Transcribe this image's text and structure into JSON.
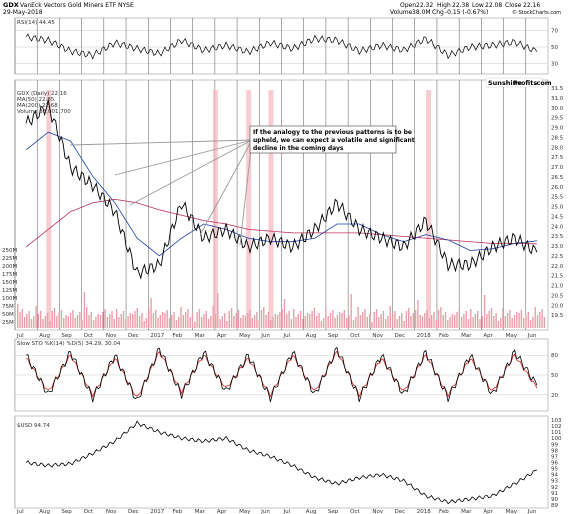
{
  "header": {
    "symbol": "GDX",
    "name": "VanEck Vectors Gold Miners ETF",
    "exchange": "NYSE",
    "date": "29-May-2018",
    "open_label": "Open",
    "open": "22.32",
    "high_label": "High",
    "high": "22.38",
    "low_label": "Low",
    "low": "22.08",
    "close_label": "Close",
    "close": "22.16",
    "volume_label": "Volume",
    "volume": "38.0M",
    "chg_label": "Chg",
    "chg": "-0.15 (-0.67%)",
    "copyright": "© StockCharts.com"
  },
  "rsi_label": "RSI(14) 44.45",
  "main_legend": {
    "line1": "GDX (Daily) 22.16",
    "line2": "MA(50) 22.85",
    "line3": "MA(200) 22.68",
    "volume": "Volume 38,001,700"
  },
  "logo": {
    "part1": "Sunshine",
    "part2": "Profits",
    "part3": ".com",
    "color1": "#d62828",
    "color2": "#d62828"
  },
  "annotation": {
    "line1": "If the analogy to the previous patterns is to be",
    "line2": "upheld, we can expect a volatile and significant",
    "line3": "decline in the coming days"
  },
  "stoch_label": "Slow STO %K(14) %D(5) 34.29, 30.04",
  "usd_label": "$USD 94.74",
  "months": [
    "Jul",
    "Aug",
    "Sep",
    "Oct",
    "Nov",
    "Dec",
    "2017",
    "Feb",
    "Mar",
    "Apr",
    "May",
    "Jun",
    "Jul",
    "Aug",
    "Sep",
    "Oct",
    "Nov",
    "Dec",
    "2018",
    "Feb",
    "Mar",
    "Apr",
    "May",
    "Jun"
  ],
  "price_ticks": [
    "31.5",
    "31.0",
    "30.0",
    "29.5",
    "29.0",
    "28.5",
    "28.0",
    "27.5",
    "27.0",
    "26.5",
    "26.0",
    "25.5",
    "25.0",
    "24.5",
    "24.0",
    "23.5",
    "23.0",
    "22.5",
    "22.0",
    "21.5",
    "21.0",
    "20.5",
    "20.0",
    "19.5"
  ],
  "volume_ticks": [
    "250M",
    "225M",
    "200M",
    "175M",
    "150M",
    "125M",
    "100M",
    "75M",
    "50M",
    "25M"
  ],
  "rsi_ticks": [
    "70",
    "50",
    "30"
  ],
  "stoch_ticks": [
    "80",
    "50",
    "20"
  ],
  "usd_ticks": [
    "103",
    "102",
    "101",
    "100",
    "99",
    "98",
    "97",
    "96",
    "95",
    "94",
    "93",
    "92",
    "91",
    "90",
    "89"
  ],
  "colors": {
    "price_line": "#000000",
    "ma50": "#1f3fa8",
    "ma200": "#c0305a",
    "volume": "#e8a0a8",
    "highlight": "#f5b7bd",
    "stoch_d": "#d62828"
  },
  "chart_data": [
    {
      "type": "line",
      "title": "GDX VanEck Vectors Gold Miners ETF NYSE",
      "x": [
        "Jul",
        "Aug",
        "Sep",
        "Oct",
        "Nov",
        "Dec",
        "2017",
        "Feb",
        "Mar",
        "Apr",
        "May",
        "Jun",
        "Jul",
        "Aug",
        "Sep",
        "Oct",
        "Nov",
        "Dec",
        "2018",
        "Feb",
        "Mar",
        "Apr",
        "May",
        "Jun"
      ],
      "series": [
        {
          "name": "GDX (Daily)",
          "values": [
            29.5,
            30.5,
            27.0,
            26.0,
            24.5,
            21.0,
            21.5,
            25.0,
            23.0,
            23.5,
            22.5,
            23.0,
            22.5,
            23.5,
            25.0,
            23.5,
            23.0,
            22.5,
            24.0,
            21.5,
            21.5,
            22.5,
            23.0,
            22.2
          ]
        },
        {
          "name": "MA(50)",
          "values": [
            28.0,
            29.0,
            28.5,
            26.5,
            25.0,
            23.0,
            22.0,
            23.0,
            23.8,
            23.5,
            23.0,
            22.8,
            22.8,
            23.0,
            23.8,
            23.8,
            23.2,
            22.8,
            23.2,
            22.9,
            22.3,
            22.4,
            22.7,
            22.85
          ]
        },
        {
          "name": "MA(200)",
          "values": [
            22.5,
            23.5,
            24.5,
            25.0,
            25.2,
            25.0,
            24.6,
            24.3,
            24.0,
            23.8,
            23.5,
            23.4,
            23.3,
            23.3,
            23.3,
            23.3,
            23.2,
            23.1,
            23.0,
            22.9,
            22.8,
            22.7,
            22.7,
            22.68
          ]
        }
      ],
      "ylim": [
        19.5,
        31.5
      ]
    },
    {
      "type": "line",
      "title": "RSI(14)",
      "ylim": [
        20,
        80
      ],
      "values": [
        62,
        58,
        45,
        40,
        55,
        48,
        42,
        58,
        46,
        52,
        44,
        55,
        48,
        60,
        58,
        45,
        52,
        46,
        60,
        40,
        50,
        52,
        56,
        44.45
      ]
    },
    {
      "type": "line",
      "title": "Slow STO %K(14) %D(5)",
      "ylim": [
        0,
        100
      ],
      "series": [
        {
          "name": "%K",
          "values": [
            80,
            20,
            85,
            15,
            80,
            10,
            90,
            20,
            85,
            25,
            80,
            15,
            85,
            20,
            90,
            15,
            80,
            20,
            85,
            15,
            80,
            20,
            85,
            34.29
          ]
        },
        {
          "name": "%D",
          "values": [
            75,
            25,
            80,
            20,
            75,
            15,
            85,
            25,
            80,
            30,
            75,
            20,
            80,
            25,
            85,
            20,
            75,
            25,
            80,
            20,
            75,
            25,
            80,
            30.04
          ]
        }
      ]
    },
    {
      "type": "line",
      "title": "$USD",
      "ylim": [
        89,
        103
      ],
      "values": [
        96.0,
        95.5,
        95.8,
        97.5,
        99.5,
        102.5,
        101.0,
        100.0,
        99.5,
        100.0,
        98.0,
        97.0,
        95.5,
        93.5,
        92.5,
        93.5,
        94.0,
        93.0,
        90.5,
        89.5,
        90.0,
        90.5,
        92.5,
        94.74
      ]
    }
  ]
}
